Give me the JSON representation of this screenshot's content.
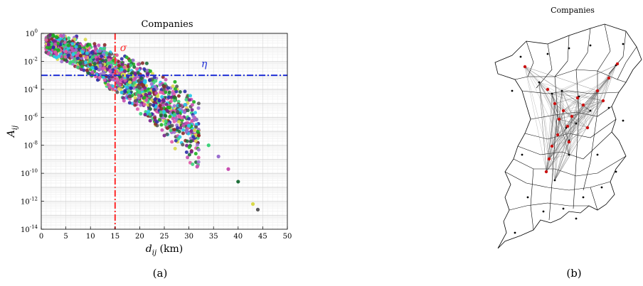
{
  "panel_a": {
    "caption": "(a)",
    "title": "Companies"
  },
  "panel_b": {
    "caption": "(b)",
    "title": "Companies"
  },
  "chart_data": [
    {
      "type": "scatter",
      "title": "Companies",
      "xlabel": "d_ij (km)",
      "ylabel": "A_ij",
      "xlim": [
        0,
        50
      ],
      "yscale": "log",
      "ylim_exponents": [
        -14,
        0
      ],
      "x_ticks": [
        0,
        5,
        10,
        15,
        20,
        25,
        30,
        35,
        40,
        45,
        50
      ],
      "y_tick_labels": [
        "10^0",
        "10^-2",
        "10^-4",
        "10^-6",
        "10^-8",
        "10^-10",
        "10^-12",
        "10^-14"
      ],
      "grid": true,
      "reference_lines": [
        {
          "label": "σ",
          "orientation": "vertical",
          "value": 15,
          "color": "#ff2a2a",
          "style": "dash-dot"
        },
        {
          "label": "η",
          "orientation": "horizontal",
          "value_exponent": -3,
          "color": "#1f2fd6",
          "style": "dash-dot"
        }
      ],
      "point_colors": [
        "#7a1f8c",
        "#2e2ea8",
        "#1fb11f",
        "#e05aa8",
        "#26c8e8",
        "#8a2a2a",
        "#3cd27a",
        "#9b6fd0",
        "#c84fb0",
        "#1e6f3a",
        "#d9d94a",
        "#5a5a5a"
      ],
      "points_note": "dense multi-colored scatter of company pairs; A_ij decays with distance",
      "points_x": [
        1.5,
        2.5,
        3.5,
        5.0,
        6.5,
        8.0,
        10.0,
        12.0,
        14.0,
        16.0,
        18.0,
        20.0,
        22.0,
        24.0,
        26.0,
        28.0,
        30.0,
        32.0,
        34.0,
        36.0,
        38.0,
        40.0,
        43.0,
        44.0
      ],
      "points_log10_y": [
        -0.8,
        -1.0,
        -1.2,
        -1.3,
        -1.5,
        -1.6,
        -1.9,
        -2.3,
        -2.7,
        -3.1,
        -3.5,
        -3.9,
        -4.3,
        -4.8,
        -5.3,
        -5.9,
        -6.6,
        -7.3,
        -8.0,
        -8.8,
        -9.7,
        -10.6,
        -12.2,
        -12.6
      ]
    },
    {
      "type": "map",
      "title": "Companies",
      "legend": [],
      "marker_colors": {
        "municipality": "#000000",
        "company_node": "#cc1111"
      }
    }
  ]
}
